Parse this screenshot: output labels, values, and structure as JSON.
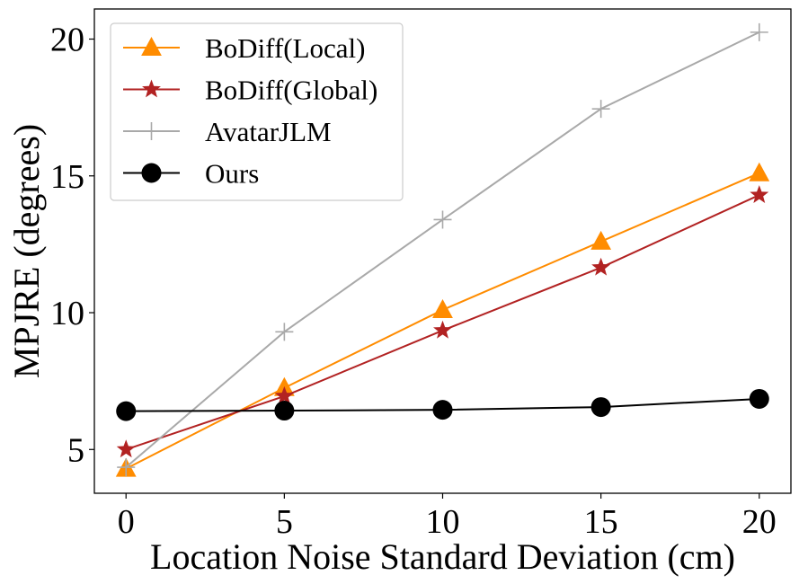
{
  "chart_data": {
    "type": "line",
    "title": "",
    "xlabel": "Location Noise Standard Deviation (cm)",
    "ylabel": "MPJRE (degrees)",
    "x": [
      0,
      5,
      10,
      15,
      20
    ],
    "xticks": [
      0,
      5,
      10,
      15,
      20
    ],
    "yticks": [
      5,
      10,
      15,
      20
    ],
    "xlim": [
      -1,
      21
    ],
    "ylim": [
      3.4,
      21.1
    ],
    "grid": false,
    "legend_position": "top-left",
    "series": [
      {
        "name": "BoDiff(Local)",
        "values": [
          4.3,
          7.25,
          10.1,
          12.6,
          15.1
        ],
        "color": "#ff8c00",
        "marker": "triangle"
      },
      {
        "name": "BoDiff(Global)",
        "values": [
          5.0,
          6.95,
          9.35,
          11.65,
          14.3
        ],
        "color": "#b22222",
        "marker": "star"
      },
      {
        "name": "AvatarJLM",
        "values": [
          4.35,
          9.3,
          13.4,
          17.45,
          20.25
        ],
        "color": "#a9a9a9",
        "marker": "plus"
      },
      {
        "name": "Ours",
        "values": [
          6.4,
          6.42,
          6.45,
          6.55,
          6.85
        ],
        "color": "#000000",
        "marker": "circle"
      }
    ]
  }
}
